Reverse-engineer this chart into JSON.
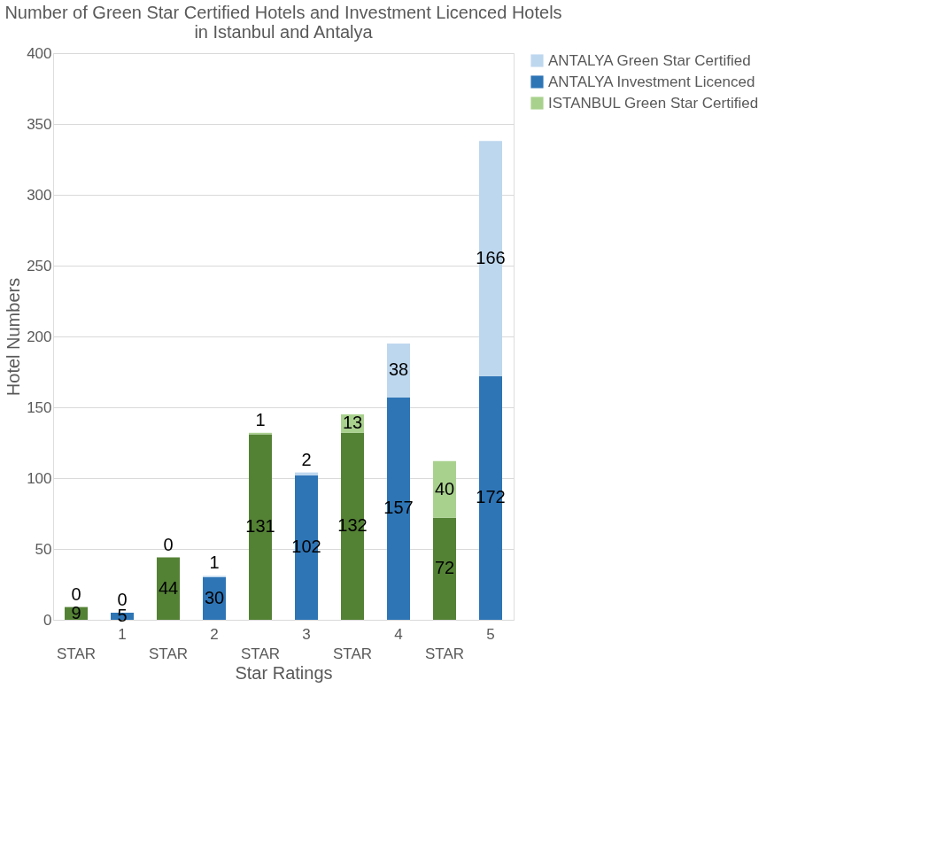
{
  "chart_data": {
    "type": "bar",
    "title": "Number of Green Star Certified Hotels and Investment Licenced Hotels in Istanbul and Antalya",
    "xlabel": "Star Ratings",
    "ylabel": "Hotel Numbers",
    "categories": [
      "STAR",
      "1",
      "STAR",
      "2",
      "STAR",
      "3",
      "STAR",
      "4",
      "STAR",
      "5"
    ],
    "stacked": true,
    "data_labels": true,
    "grid": "y",
    "legend": "right",
    "ylim": [
      0,
      400
    ],
    "yticks": [
      0,
      50,
      100,
      150,
      200,
      250,
      300,
      350,
      400
    ],
    "series": [
      {
        "color": "#548235",
        "values": [
          9,
          null,
          44,
          null,
          131,
          null,
          132,
          null,
          72,
          null
        ]
      },
      {
        "name": "ISTANBUL Green Star Certified",
        "color": "#a9d18e",
        "values": [
          0,
          null,
          0,
          null,
          1,
          null,
          13,
          null,
          40,
          null
        ]
      },
      {
        "name": "ANTALYA Investment Licenced",
        "color": "#2e75b6",
        "values": [
          null,
          5,
          null,
          30,
          null,
          102,
          null,
          157,
          null,
          172
        ]
      },
      {
        "name": "ANTALYA Green Star Certified",
        "color": "#bdd7ee",
        "values": [
          null,
          0,
          null,
          1,
          null,
          2,
          null,
          38,
          null,
          166
        ]
      }
    ]
  }
}
